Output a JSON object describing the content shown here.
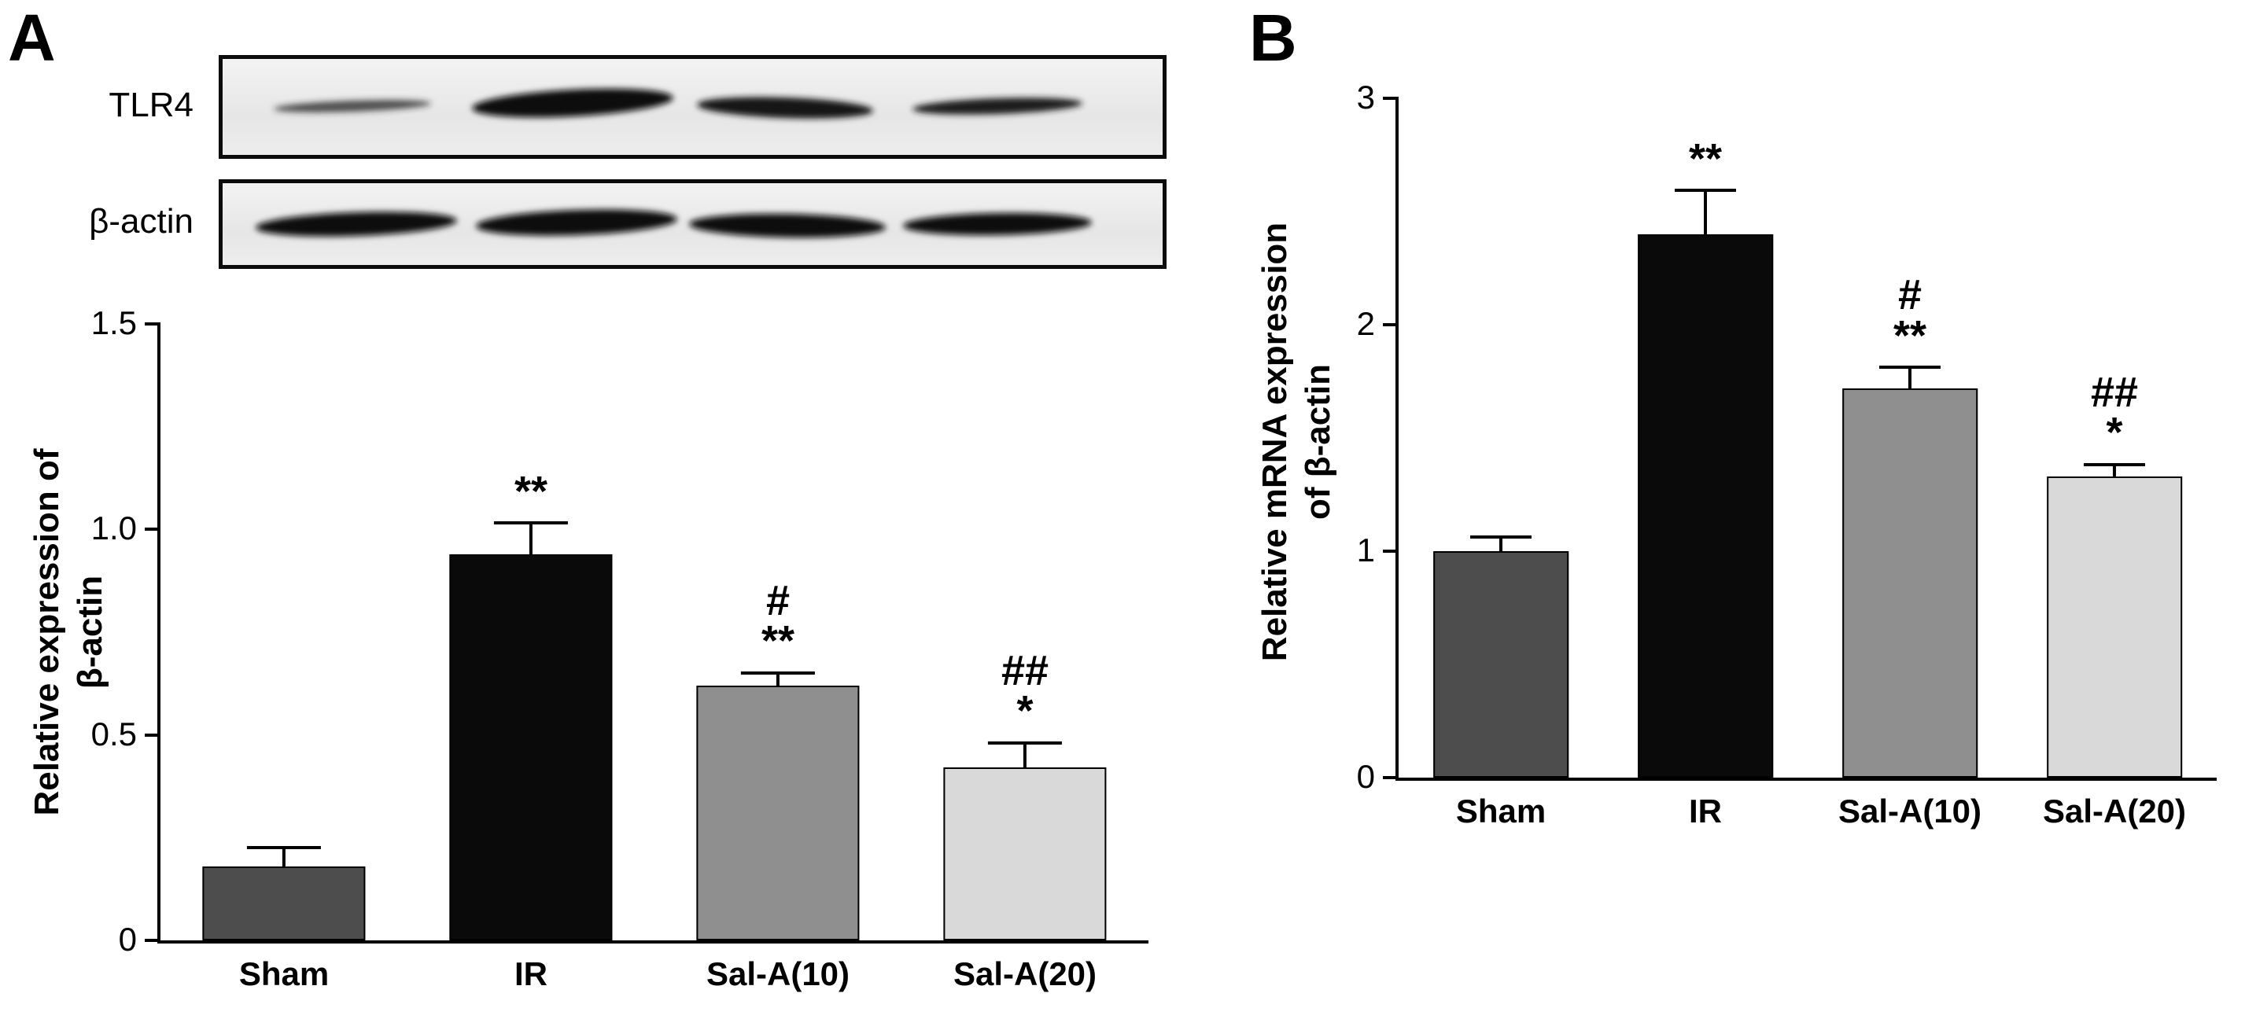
{
  "figure": {
    "panel_a": {
      "letter": "A",
      "blot": {
        "rows": [
          {
            "label": "TLR4",
            "band_intensities": [
              "faint",
              "strong",
              "medium",
              "medium"
            ]
          },
          {
            "label": "β-actin",
            "band_intensities": [
              "strong",
              "strong",
              "strong",
              "strong"
            ]
          }
        ]
      }
    },
    "panel_b": {
      "letter": "B"
    }
  },
  "chart_data": [
    {
      "type": "bar",
      "panel": "A",
      "title": "",
      "categories": [
        "Sham",
        "IR",
        "Sal-A(10)",
        "Sal-A(20)"
      ],
      "values": [
        0.18,
        0.94,
        0.62,
        0.42
      ],
      "errors": [
        0.05,
        0.08,
        0.035,
        0.065
      ],
      "annotations": [
        [],
        [
          "**"
        ],
        [
          "#",
          "**"
        ],
        [
          "##",
          "*"
        ]
      ],
      "bar_colors": [
        "#4d4d4d",
        "#0a0a0a",
        "#8f8f8f",
        "#d9d9d9"
      ],
      "xlabel": "",
      "ylabel": "Relative expression of\nβ-actin",
      "ylim": [
        0,
        1.5
      ],
      "yticks": [
        0,
        0.5,
        1.0,
        1.5
      ],
      "ytick_labels": [
        "0",
        "0.5",
        "1.0",
        "1.5"
      ],
      "grid": false,
      "legend": "none"
    },
    {
      "type": "bar",
      "panel": "B",
      "title": "",
      "categories": [
        "Sham",
        "IR",
        "Sal-A(10)",
        "Sal-A(20)"
      ],
      "values": [
        1.0,
        2.4,
        1.72,
        1.33
      ],
      "errors": [
        0.07,
        0.2,
        0.1,
        0.06
      ],
      "annotations": [
        [],
        [
          "**"
        ],
        [
          "#",
          "**"
        ],
        [
          "##",
          "*"
        ]
      ],
      "bar_colors": [
        "#4d4d4d",
        "#0a0a0a",
        "#8f8f8f",
        "#d9d9d9"
      ],
      "xlabel": "",
      "ylabel": "Relative mRNA expression\nof β-actin",
      "ylim": [
        0,
        3
      ],
      "yticks": [
        0,
        1,
        2,
        3
      ],
      "ytick_labels": [
        "0",
        "1",
        "2",
        "3"
      ],
      "grid": false,
      "legend": "none"
    }
  ]
}
